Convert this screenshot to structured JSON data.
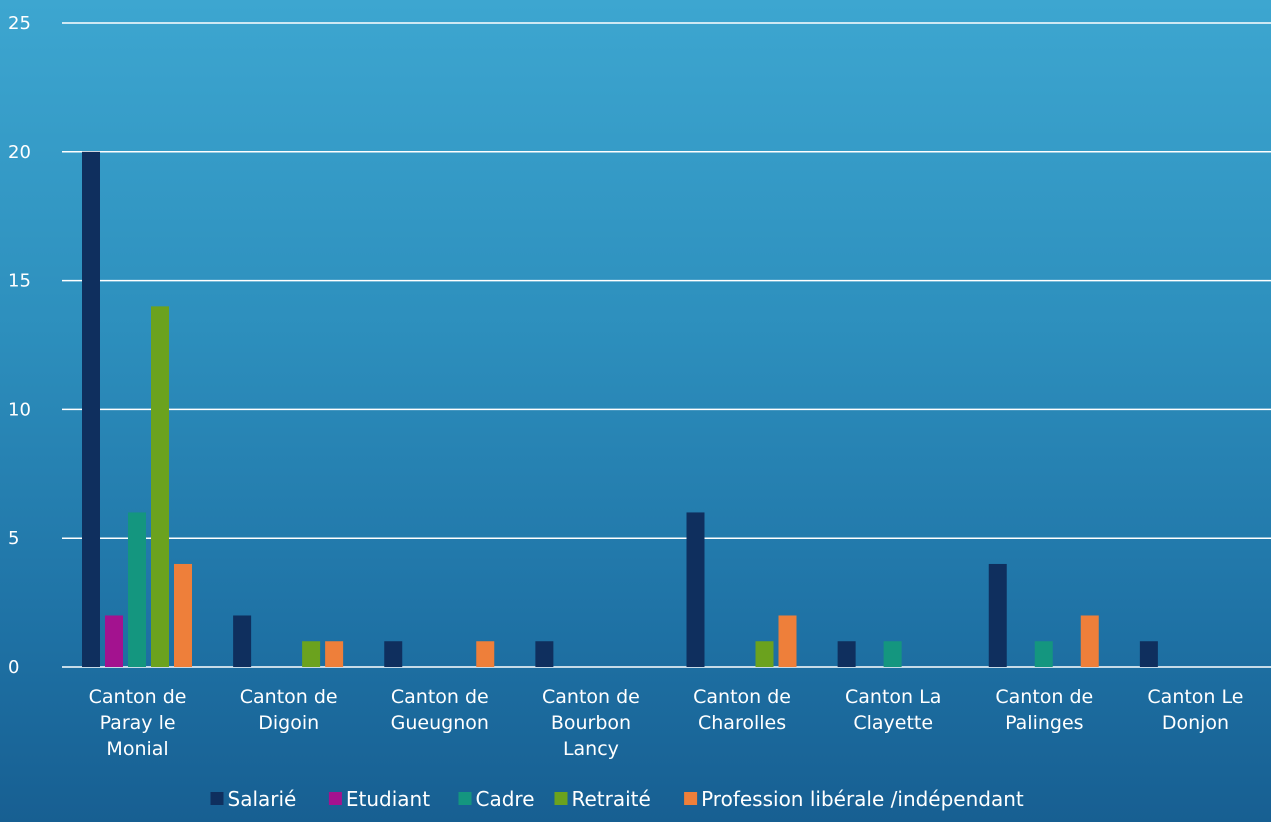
{
  "chart_data": {
    "type": "bar",
    "categories": [
      "Canton de Paray le Monial",
      "Canton de Digoin",
      "Canton de Gueugnon",
      "Canton de Bourbon Lancy",
      "Canton de Charolles",
      "Canton La Clayette",
      "Canton de Palinges",
      "Canton Le Donjon"
    ],
    "series": [
      {
        "name": "Salarié",
        "color": "#0f2f5e",
        "values": [
          20,
          2,
          1,
          1,
          6,
          1,
          4,
          1
        ]
      },
      {
        "name": "Etudiant",
        "color": "#a3128f",
        "values": [
          2,
          0,
          0,
          0,
          0,
          0,
          0,
          0
        ]
      },
      {
        "name": "Cadre",
        "color": "#14967f",
        "values": [
          6,
          0,
          0,
          0,
          0,
          1,
          1,
          0
        ]
      },
      {
        "name": "Retraité",
        "color": "#6ba21e",
        "values": [
          14,
          1,
          0,
          0,
          1,
          0,
          0,
          0
        ]
      },
      {
        "name": "Profession libérale /indépendant",
        "color": "#ee7f3a",
        "values": [
          4,
          1,
          1,
          0,
          2,
          0,
          2,
          0
        ]
      }
    ],
    "ylim": [
      0,
      25
    ],
    "yticks": [
      0,
      5,
      10,
      15,
      20,
      25
    ],
    "grid": true,
    "legend": "bottom",
    "title": "",
    "xlabel": "",
    "ylabel": ""
  }
}
